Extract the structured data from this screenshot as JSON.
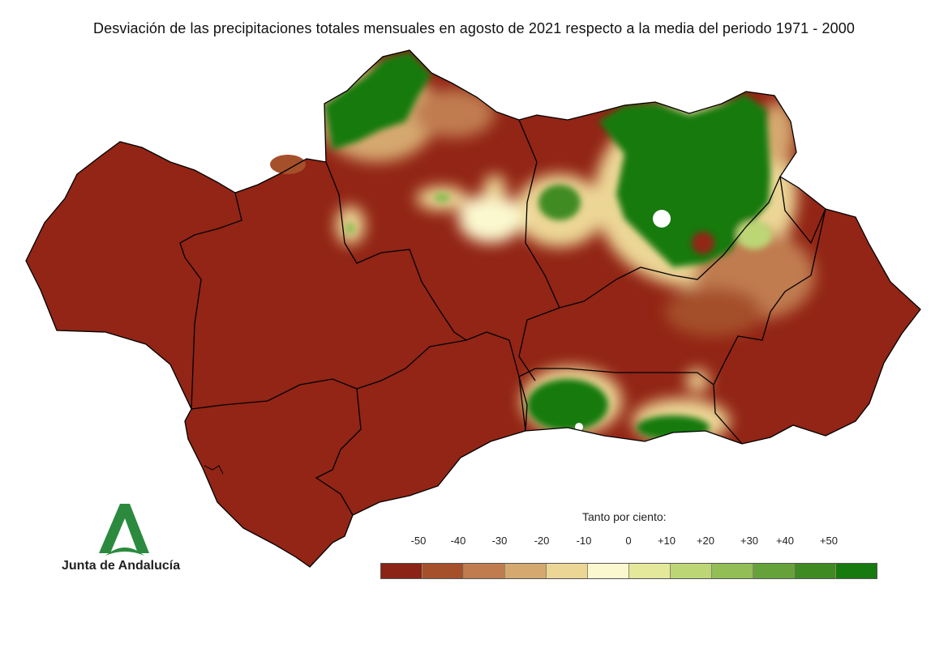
{
  "title": "Desviación de las precipitaciones totales mensuales en agosto de 2021 respecto a la media del periodo 1971 - 2000",
  "legend": {
    "title": "Tanto por ciento:",
    "ticks": [
      "-50",
      "-40",
      "-30",
      "-20",
      "-10",
      "0",
      "+10",
      "+20",
      "+30",
      "+40",
      "+50"
    ],
    "colors": [
      "#8b2316",
      "#a5502a",
      "#c07c4f",
      "#d5a870",
      "#ecd696",
      "#fbf8cf",
      "#e4e89b",
      "#bcd676",
      "#93be56",
      "#65a33a",
      "#3f8b22",
      "#167a0f"
    ]
  },
  "colors": {
    "very_dry": "#922515",
    "very_wet": "#1a7a14",
    "border": "#000000",
    "logo_green": "#2b8a3e"
  },
  "logo": {
    "name": "Junta de Andalucía"
  }
}
